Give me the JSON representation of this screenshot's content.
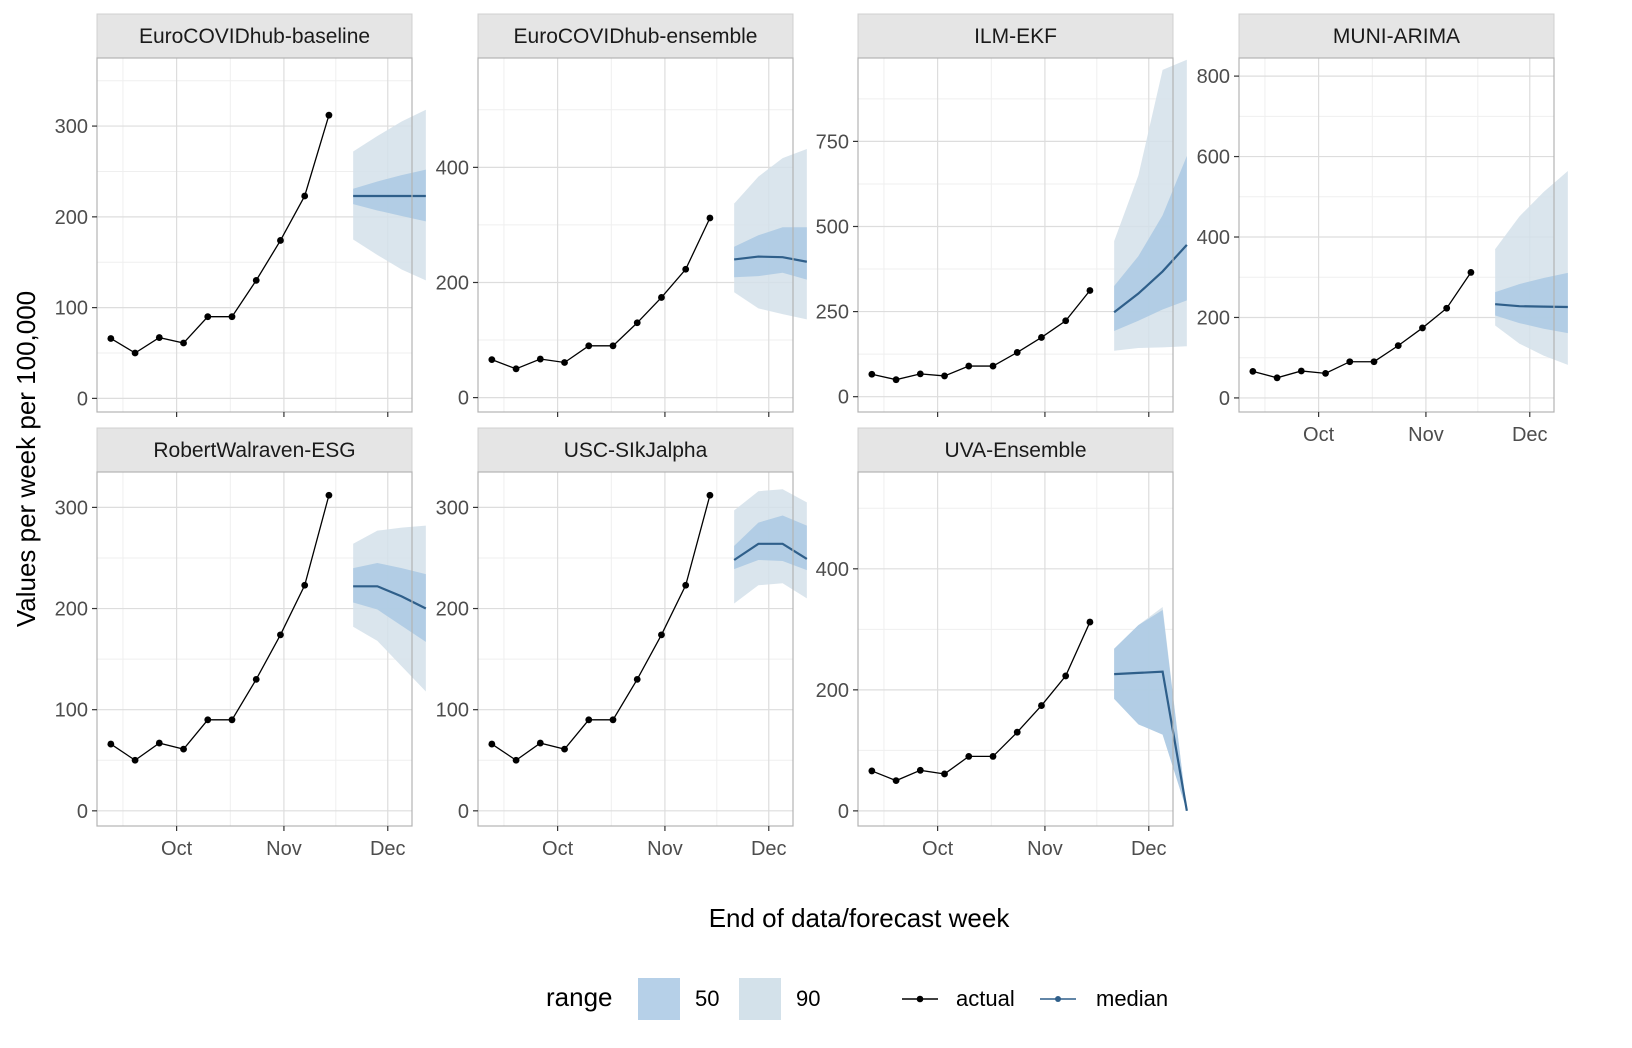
{
  "chart_data": {
    "type": "line",
    "ylabel": "Values per week per 100,000",
    "xlabel": "End of data/forecast week",
    "x_ticks": [
      {
        "label": "Oct",
        "date": "2021-10-01"
      },
      {
        "label": "Nov",
        "date": "2021-11-01"
      },
      {
        "label": "Dec",
        "date": "2021-12-01"
      }
    ],
    "x_range": [
      "2021-09-08",
      "2021-12-08"
    ],
    "actual": {
      "dates": [
        "2021-09-12",
        "2021-09-19",
        "2021-09-26",
        "2021-10-03",
        "2021-10-10",
        "2021-10-17",
        "2021-10-24",
        "2021-10-31",
        "2021-11-07",
        "2021-11-14"
      ],
      "values": [
        66,
        50,
        67,
        61,
        90,
        90,
        130,
        174,
        223,
        312
      ]
    },
    "forecast_dates": [
      "2021-11-21",
      "2021-11-28",
      "2021-12-05",
      "2021-12-12"
    ],
    "legend": {
      "range_title": "range",
      "range_items": [
        {
          "label": "50",
          "color": "#b6d0e8"
        },
        {
          "label": "90",
          "color": "#d3e1ea"
        }
      ],
      "line_items": [
        {
          "label": "actual",
          "color": "#000000"
        },
        {
          "label": "median",
          "color": "#2f5f8a"
        }
      ]
    },
    "colors": {
      "actual": "#000000",
      "median": "#2f5f8a",
      "range_50": "#aac9e3",
      "range_90": "#d3e1ea",
      "strip": "#e5e5e5",
      "grid_major": "#dddddd",
      "grid_minor": "#efefef"
    },
    "panels": [
      {
        "title": "EuroCOVIDhub-baseline",
        "ylim": [
          -15,
          375
        ],
        "yticks": [
          0,
          100,
          200,
          300
        ],
        "median": [
          223,
          223,
          223,
          223
        ],
        "q50": [
          [
            214,
            231
          ],
          [
            207,
            239
          ],
          [
            201,
            246
          ],
          [
            195,
            252
          ]
        ],
        "q90": [
          [
            175,
            272
          ],
          [
            158,
            289
          ],
          [
            142,
            305
          ],
          [
            130,
            318
          ]
        ]
      },
      {
        "title": "EuroCOVIDhub-ensemble",
        "ylim": [
          -25,
          590
        ],
        "yticks": [
          0,
          200,
          400
        ],
        "median": [
          240,
          245,
          244,
          236
        ],
        "q50": [
          [
            209,
            262
          ],
          [
            211,
            282
          ],
          [
            217,
            296
          ],
          [
            205,
            296
          ]
        ],
        "q90": [
          [
            183,
            337
          ],
          [
            155,
            384
          ],
          [
            145,
            416
          ],
          [
            136,
            432
          ]
        ]
      },
      {
        "title": "ILM-EKF",
        "ylim": [
          -45,
          995
        ],
        "yticks": [
          0,
          250,
          500,
          750
        ],
        "median": [
          248,
          303,
          368,
          446
        ],
        "q50": [
          [
            193,
            325
          ],
          [
            223,
            413
          ],
          [
            256,
            533
          ],
          [
            283,
            707
          ]
        ],
        "q90": [
          [
            135,
            457
          ],
          [
            143,
            650
          ],
          [
            145,
            960
          ],
          [
            148,
            990
          ]
        ]
      },
      {
        "title": "MUNI-ARIMA",
        "ylim": [
          -35,
          845
        ],
        "yticks": [
          0,
          200,
          400,
          600,
          800
        ],
        "median": [
          233,
          228,
          227,
          226
        ],
        "q50": [
          [
            205,
            263
          ],
          [
            186,
            283
          ],
          [
            172,
            298
          ],
          [
            161,
            311
          ]
        ],
        "q90": [
          [
            180,
            370
          ],
          [
            135,
            451
          ],
          [
            105,
            512
          ],
          [
            82,
            564
          ]
        ]
      },
      {
        "title": "RobertWalraven-ESG",
        "ylim": [
          -15,
          335
        ],
        "yticks": [
          0,
          100,
          200,
          300
        ],
        "median": [
          222,
          222,
          212,
          200
        ],
        "q50": [
          [
            206,
            240
          ],
          [
            199,
            245
          ],
          [
            183,
            240
          ],
          [
            167,
            234
          ]
        ],
        "q90": [
          [
            182,
            264
          ],
          [
            168,
            277
          ],
          [
            143,
            280
          ],
          [
            118,
            282
          ]
        ]
      },
      {
        "title": "USC-SIkJalpha",
        "ylim": [
          -15,
          335
        ],
        "yticks": [
          0,
          100,
          200,
          300
        ],
        "median": [
          248,
          264,
          264,
          249
        ],
        "q50": [
          [
            239,
            262
          ],
          [
            248,
            285
          ],
          [
            247,
            292
          ],
          [
            238,
            282
          ]
        ],
        "q90": [
          [
            205,
            297
          ],
          [
            223,
            316
          ],
          [
            225,
            318
          ],
          [
            210,
            305
          ]
        ]
      },
      {
        "title": "UVA-Ensemble",
        "ylim": [
          -25,
          560
        ],
        "yticks": [
          0,
          200,
          400
        ],
        "median": [
          226,
          228,
          230,
          0
        ],
        "q50": [
          [
            185,
            268
          ],
          [
            143,
            307
          ],
          [
            126,
            332
          ],
          [
            0,
            0
          ]
        ],
        "q90": [
          [
            185,
            268
          ],
          [
            143,
            307
          ],
          [
            126,
            337
          ],
          [
            0,
            0
          ]
        ]
      }
    ]
  }
}
